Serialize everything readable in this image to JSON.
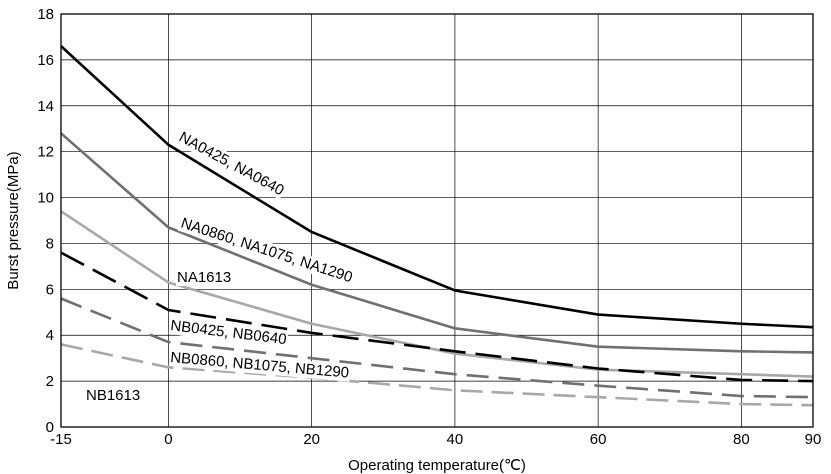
{
  "chart_data": {
    "type": "line",
    "title": "",
    "xlabel": "Operating temperature(℃)",
    "ylabel": "Burst pressure(MPa)",
    "xlim": [
      -15,
      90
    ],
    "ylim": [
      0,
      18
    ],
    "xticks": [
      -15,
      0,
      20,
      40,
      60,
      80,
      90
    ],
    "yticks": [
      0,
      2,
      4,
      6,
      8,
      10,
      12,
      14,
      16,
      18
    ],
    "grid": true,
    "legend": "none",
    "series": [
      {
        "name": "NA0425, NA0640",
        "color": "#000000",
        "style": "solid",
        "x": [
          -15,
          0,
          20,
          40,
          60,
          80,
          90
        ],
        "y": [
          16.6,
          12.3,
          8.5,
          5.95,
          4.9,
          4.5,
          4.35
        ]
      },
      {
        "name": "NA0860, NA1075, NA1290",
        "color": "#707070",
        "style": "solid",
        "x": [
          -15,
          0,
          20,
          40,
          60,
          80,
          90
        ],
        "y": [
          12.8,
          8.7,
          6.2,
          4.3,
          3.5,
          3.3,
          3.25
        ]
      },
      {
        "name": "NA1613",
        "color": "#a8a8a8",
        "style": "solid",
        "x": [
          -15,
          0,
          20,
          40,
          60,
          80,
          90
        ],
        "y": [
          9.4,
          6.3,
          4.5,
          3.2,
          2.5,
          2.3,
          2.2
        ]
      },
      {
        "name": "NB0425, NB0640",
        "color": "#000000",
        "style": "dashed",
        "x": [
          -15,
          0,
          20,
          40,
          60,
          80,
          90
        ],
        "y": [
          7.6,
          5.1,
          4.1,
          3.3,
          2.55,
          2.05,
          2.0
        ]
      },
      {
        "name": "NB0860, NB1075, NB1290",
        "color": "#707070",
        "style": "dashed",
        "x": [
          -15,
          0,
          20,
          40,
          60,
          80,
          90
        ],
        "y": [
          5.6,
          3.7,
          3.0,
          2.3,
          1.8,
          1.35,
          1.3
        ]
      },
      {
        "name": "NB1613",
        "color": "#a8a8a8",
        "style": "dashed",
        "x": [
          -15,
          0,
          20,
          40,
          60,
          80,
          90
        ],
        "y": [
          3.6,
          2.6,
          2.15,
          1.6,
          1.3,
          1.0,
          0.95
        ]
      }
    ]
  }
}
